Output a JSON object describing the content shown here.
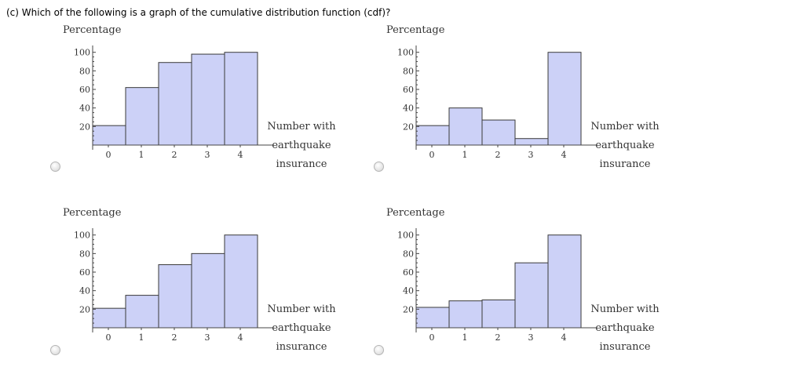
{
  "question": "(c) Which of the following is a graph of the cumulative distribution function (cdf)?",
  "colors": {
    "bar_fill": "#ccd1f7",
    "bar_stroke": "#3a3a3a",
    "axis": "#444444"
  },
  "chart_data": [
    {
      "type": "bar",
      "ylabel": "Percentage",
      "xlabel_lines": [
        "Number with",
        "earthquake",
        "insurance"
      ],
      "categories": [
        "0",
        "1",
        "2",
        "3",
        "4"
      ],
      "values": [
        21,
        62,
        89,
        98,
        100
      ],
      "yticks": [
        "20",
        "40",
        "60",
        "80",
        "100"
      ],
      "ylim": [
        0,
        100
      ]
    },
    {
      "type": "bar",
      "ylabel": "Percentage",
      "xlabel_lines": [
        "Number with",
        "earthquake",
        "insurance"
      ],
      "categories": [
        "0",
        "1",
        "2",
        "3",
        "4"
      ],
      "values": [
        21,
        40,
        27,
        7,
        100
      ],
      "yticks": [
        "20",
        "40",
        "60",
        "80",
        "100"
      ],
      "ylim": [
        0,
        100
      ]
    },
    {
      "type": "bar",
      "ylabel": "Percentage",
      "xlabel_lines": [
        "Number with",
        "earthquake",
        "insurance"
      ],
      "categories": [
        "0",
        "1",
        "2",
        "3",
        "4"
      ],
      "values": [
        21,
        35,
        68,
        80,
        100
      ],
      "yticks": [
        "20",
        "40",
        "60",
        "80",
        "100"
      ],
      "ylim": [
        0,
        100
      ]
    },
    {
      "type": "bar",
      "ylabel": "Percentage",
      "xlabel_lines": [
        "Number with",
        "earthquake",
        "insurance"
      ],
      "categories": [
        "0",
        "1",
        "2",
        "3",
        "4"
      ],
      "values": [
        22,
        29,
        30,
        70,
        100
      ],
      "yticks": [
        "20",
        "40",
        "60",
        "80",
        "100"
      ],
      "ylim": [
        0,
        100
      ]
    }
  ]
}
